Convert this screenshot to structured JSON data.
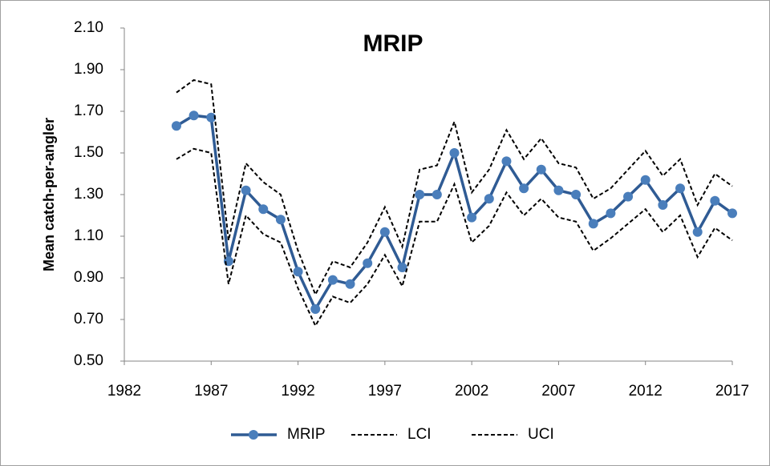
{
  "chart_data": {
    "type": "line",
    "title": "MRIP",
    "y_label": "Mean catch-per-angler",
    "x": [
      1985,
      1986,
      1987,
      1988,
      1989,
      1990,
      1991,
      1992,
      1993,
      1994,
      1995,
      1996,
      1997,
      1998,
      1999,
      2000,
      2001,
      2002,
      2003,
      2004,
      2005,
      2006,
      2007,
      2008,
      2009,
      2010,
      2011,
      2012,
      2013,
      2014,
      2015,
      2016,
      2017
    ],
    "series": [
      {
        "name": "MRIP",
        "color": "#4a7ebb",
        "line_color": "#2f5b94",
        "marker": "circle",
        "line_style": "solid",
        "values": [
          1.63,
          1.68,
          1.67,
          0.98,
          1.32,
          1.23,
          1.18,
          0.93,
          0.75,
          0.89,
          0.87,
          0.97,
          1.12,
          0.95,
          1.3,
          1.3,
          1.5,
          1.19,
          1.28,
          1.46,
          1.33,
          1.42,
          1.32,
          1.3,
          1.16,
          1.21,
          1.29,
          1.37,
          1.25,
          1.33,
          1.12,
          1.27,
          1.21
        ]
      },
      {
        "name": "LCI",
        "color": "#000000",
        "line_style": "dashed",
        "values": [
          1.47,
          1.52,
          1.5,
          0.87,
          1.2,
          1.11,
          1.07,
          0.85,
          0.67,
          0.81,
          0.78,
          0.87,
          1.01,
          0.86,
          1.17,
          1.17,
          1.35,
          1.07,
          1.15,
          1.31,
          1.2,
          1.28,
          1.19,
          1.17,
          1.03,
          1.09,
          1.16,
          1.23,
          1.12,
          1.2,
          1.0,
          1.14,
          1.08
        ]
      },
      {
        "name": "UCI",
        "color": "#000000",
        "line_style": "dashed",
        "values": [
          1.79,
          1.85,
          1.83,
          1.08,
          1.45,
          1.36,
          1.3,
          1.03,
          0.82,
          0.98,
          0.95,
          1.07,
          1.24,
          1.05,
          1.42,
          1.44,
          1.65,
          1.31,
          1.42,
          1.61,
          1.47,
          1.57,
          1.45,
          1.43,
          1.28,
          1.33,
          1.42,
          1.51,
          1.39,
          1.47,
          1.25,
          1.4,
          1.34
        ]
      }
    ],
    "xlim": [
      1982,
      2017
    ],
    "xticks": [
      1982,
      1987,
      1992,
      1997,
      2002,
      2007,
      2012,
      2017
    ],
    "ylim": [
      0.5,
      2.1
    ],
    "yticks": [
      {
        "value": 0.5,
        "label": "0.50"
      },
      {
        "value": 0.7,
        "label": "0.70"
      },
      {
        "value": 0.9,
        "label": "0.90"
      },
      {
        "value": 1.1,
        "label": "1.10"
      },
      {
        "value": 1.3,
        "label": "1.30"
      },
      {
        "value": 1.5,
        "label": "1.50"
      },
      {
        "value": 1.7,
        "label": "1.70"
      },
      {
        "value": 1.9,
        "label": "1.90"
      },
      {
        "value": 2.1,
        "label": "2.10"
      }
    ],
    "grid": false,
    "legend": "bottom"
  }
}
